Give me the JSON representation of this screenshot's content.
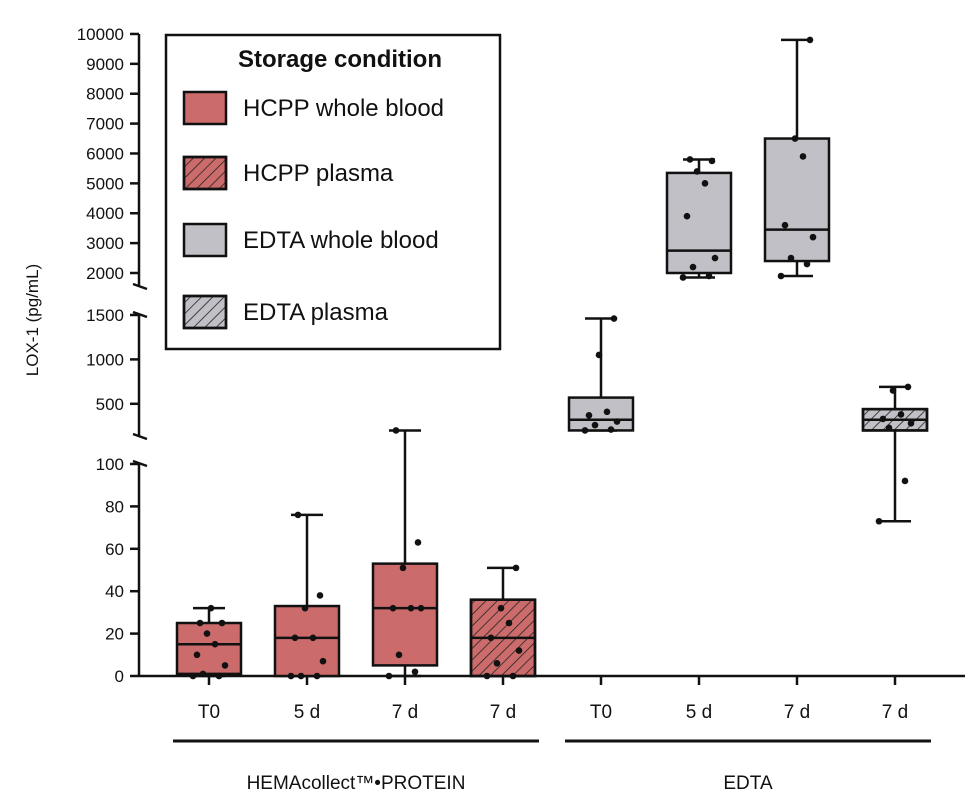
{
  "chart_data": {
    "type": "box",
    "ylabel": "LOX-1 (pg/mL)",
    "y_axis_segments": [
      {
        "ticks": [
          0,
          20,
          40,
          60,
          80,
          100
        ]
      },
      {
        "ticks": [
          500,
          1000,
          1500
        ]
      },
      {
        "ticks": [
          2000,
          3000,
          4000,
          5000,
          6000,
          7000,
          8000,
          9000,
          10000
        ]
      }
    ],
    "tick_labels_text": {
      "b0": "0",
      "b20": "20",
      "b40": "40",
      "b60": "60",
      "b80": "80",
      "b100": "100",
      "m500": "500",
      "m1000": "1000",
      "m1500": "1500",
      "t2000": "2000",
      "t3000": "3000",
      "t4000": "4000",
      "t5000": "5000",
      "t6000": "6000",
      "t7000": "7000",
      "t8000": "8000",
      "t9000": "9000",
      "t10000": "10000"
    },
    "legend": {
      "title": "Storage condition",
      "placement": "top-left",
      "items": [
        {
          "label": "HCPP whole blood",
          "fill": "#cc6b6b",
          "hatched": false
        },
        {
          "label": "HCPP plasma",
          "fill": "#cc6b6b",
          "hatched": true
        },
        {
          "label": "EDTA whole blood",
          "fill": "#c0c0c6",
          "hatched": false
        },
        {
          "label": "EDTA plasma",
          "fill": "#c0c0c6",
          "hatched": true
        }
      ]
    },
    "groups": [
      {
        "label": "HEMAcollect™•PROTEIN",
        "from": 0,
        "to": 3
      },
      {
        "label": "EDTA",
        "from": 4,
        "to": 7
      }
    ],
    "boxes": [
      {
        "x": "T0",
        "condition": "HCPP whole blood",
        "color": "#cc6b6b",
        "hatched": false,
        "whisker_low": 0,
        "q1": 1,
        "median": 15,
        "q3": 25,
        "whisker_high": 32,
        "points": [
          0,
          0,
          1,
          5,
          10,
          15,
          20,
          25,
          25,
          32
        ]
      },
      {
        "x": "5 d",
        "condition": "HCPP whole blood",
        "color": "#cc6b6b",
        "hatched": false,
        "whisker_low": 0,
        "q1": 0,
        "median": 18,
        "q3": 33,
        "whisker_high": 76,
        "points": [
          0,
          0,
          0,
          7,
          18,
          18,
          32,
          38,
          76
        ]
      },
      {
        "x": "7 d",
        "condition": "HCPP whole blood",
        "color": "#cc6b6b",
        "hatched": false,
        "whisker_low": 0,
        "q1": 5,
        "median": 32,
        "q3": 53,
        "whisker_high": 200,
        "points": [
          0,
          2,
          10,
          32,
          32,
          32,
          51,
          63,
          200
        ]
      },
      {
        "x": "7 d",
        "condition": "HCPP plasma",
        "color": "#cc6b6b",
        "hatched": true,
        "whisker_low": 0,
        "q1": 0,
        "median": 18,
        "q3": 36,
        "whisker_high": 51,
        "points": [
          0,
          0,
          6,
          12,
          18,
          25,
          32,
          51
        ]
      },
      {
        "x": "T0",
        "condition": "EDTA whole blood",
        "color": "#c0c0c6",
        "hatched": false,
        "whisker_low": 200,
        "q1": 200,
        "median": 320,
        "q3": 570,
        "whisker_high": 1460,
        "points": [
          200,
          210,
          260,
          300,
          370,
          410,
          1050,
          1460
        ]
      },
      {
        "x": "5 d",
        "condition": "EDTA whole blood",
        "color": "#c0c0c6",
        "hatched": false,
        "whisker_low": 1850,
        "q1": 2000,
        "median": 2750,
        "q3": 5350,
        "whisker_high": 5800,
        "points": [
          1850,
          1900,
          2200,
          2500,
          3900,
          5000,
          5400,
          5750,
          5800
        ]
      },
      {
        "x": "7 d",
        "condition": "EDTA whole blood",
        "color": "#c0c0c6",
        "hatched": false,
        "whisker_low": 1900,
        "q1": 2400,
        "median": 3450,
        "q3": 6500,
        "whisker_high": 9800,
        "points": [
          1900,
          2300,
          2500,
          3200,
          3600,
          5900,
          6500,
          9800
        ]
      },
      {
        "x": "7 d",
        "condition": "EDTA plasma",
        "color": "#c0c0c6",
        "hatched": true,
        "whisker_low": 73,
        "q1": 200,
        "median": 320,
        "q3": 440,
        "whisker_high": 690,
        "points": [
          73,
          92,
          230,
          280,
          330,
          380,
          650,
          690
        ]
      }
    ]
  }
}
